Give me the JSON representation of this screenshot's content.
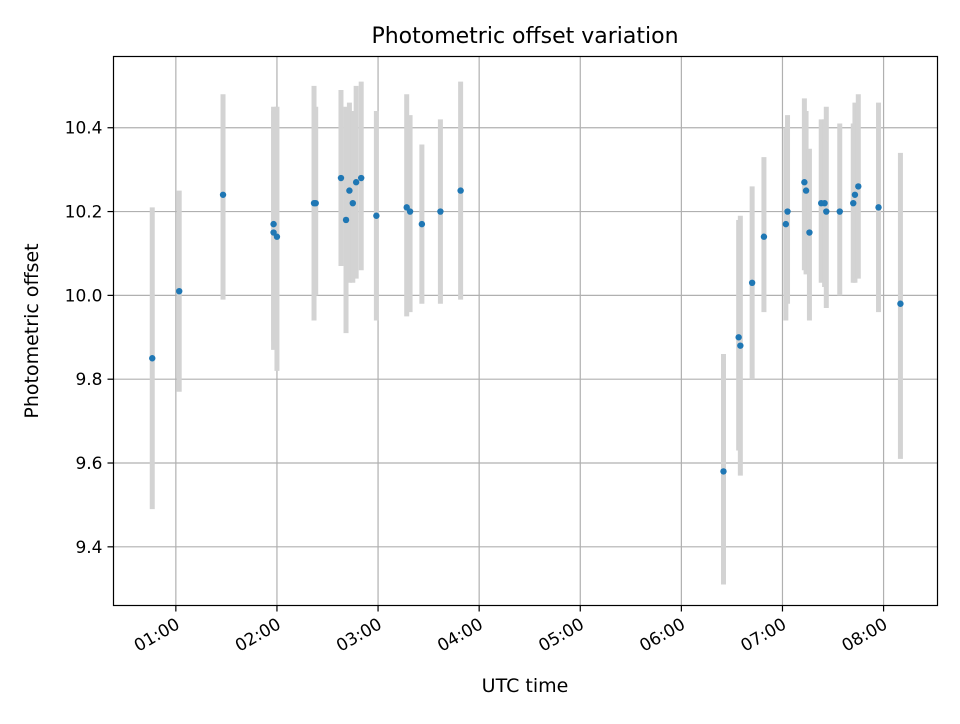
{
  "chart_data": {
    "type": "scatter",
    "title": "Photometric offset variation",
    "xlabel": "UTC time",
    "ylabel": "Photometric offset",
    "x_ticks": [
      "01:00",
      "02:00",
      "03:00",
      "04:00",
      "05:00",
      "06:00",
      "07:00",
      "08:00"
    ],
    "y_ticks": [
      "9.4",
      "9.6",
      "9.8",
      "10.0",
      "10.2",
      "10.4"
    ],
    "xlim": [
      "00:23",
      "08:32"
    ],
    "ylim": [
      9.26,
      10.57
    ],
    "grid": true,
    "point_color": "#1f77b4",
    "errorbar_color": "#d3d3d3",
    "points": [
      {
        "x": "00:46",
        "y": 9.85,
        "lo": 9.49,
        "hi": 10.21
      },
      {
        "x": "01:02",
        "y": 10.01,
        "lo": 9.77,
        "hi": 10.25
      },
      {
        "x": "01:28",
        "y": 10.24,
        "lo": 9.99,
        "hi": 10.48
      },
      {
        "x": "01:58",
        "y": 10.15,
        "lo": 9.87,
        "hi": 10.44
      },
      {
        "x": "01:58",
        "y": 10.17,
        "lo": 9.89,
        "hi": 10.45
      },
      {
        "x": "02:00",
        "y": 10.14,
        "lo": 9.82,
        "hi": 10.45
      },
      {
        "x": "02:22",
        "y": 10.22,
        "lo": 9.94,
        "hi": 10.5
      },
      {
        "x": "02:23",
        "y": 10.22,
        "lo": 10.0,
        "hi": 10.45
      },
      {
        "x": "02:38",
        "y": 10.28,
        "lo": 10.07,
        "hi": 10.49
      },
      {
        "x": "02:41",
        "y": 10.18,
        "lo": 9.91,
        "hi": 10.45
      },
      {
        "x": "02:43",
        "y": 10.25,
        "lo": 10.03,
        "hi": 10.46
      },
      {
        "x": "02:45",
        "y": 10.22,
        "lo": 10.03,
        "hi": 10.44
      },
      {
        "x": "02:47",
        "y": 10.27,
        "lo": 10.04,
        "hi": 10.5
      },
      {
        "x": "02:50",
        "y": 10.28,
        "lo": 10.06,
        "hi": 10.51
      },
      {
        "x": "02:59",
        "y": 10.19,
        "lo": 9.94,
        "hi": 10.44
      },
      {
        "x": "03:17",
        "y": 10.21,
        "lo": 9.95,
        "hi": 10.48
      },
      {
        "x": "03:19",
        "y": 10.2,
        "lo": 9.96,
        "hi": 10.43
      },
      {
        "x": "03:26",
        "y": 10.17,
        "lo": 9.98,
        "hi": 10.36
      },
      {
        "x": "03:37",
        "y": 10.2,
        "lo": 9.98,
        "hi": 10.42
      },
      {
        "x": "03:49",
        "y": 10.25,
        "lo": 9.99,
        "hi": 10.51
      },
      {
        "x": "06:25",
        "y": 9.58,
        "lo": 9.31,
        "hi": 9.86
      },
      {
        "x": "06:34",
        "y": 9.9,
        "lo": 9.63,
        "hi": 10.18
      },
      {
        "x": "06:35",
        "y": 9.88,
        "lo": 9.57,
        "hi": 10.19
      },
      {
        "x": "06:42",
        "y": 10.03,
        "lo": 9.8,
        "hi": 10.26
      },
      {
        "x": "06:49",
        "y": 10.14,
        "lo": 9.96,
        "hi": 10.33
      },
      {
        "x": "07:02",
        "y": 10.17,
        "lo": 9.94,
        "hi": 10.4
      },
      {
        "x": "07:03",
        "y": 10.2,
        "lo": 9.98,
        "hi": 10.43
      },
      {
        "x": "07:13",
        "y": 10.27,
        "lo": 10.06,
        "hi": 10.47
      },
      {
        "x": "07:14",
        "y": 10.25,
        "lo": 10.05,
        "hi": 10.44
      },
      {
        "x": "07:16",
        "y": 10.15,
        "lo": 9.94,
        "hi": 10.35
      },
      {
        "x": "07:23",
        "y": 10.22,
        "lo": 10.03,
        "hi": 10.42
      },
      {
        "x": "07:25",
        "y": 10.22,
        "lo": 10.02,
        "hi": 10.42
      },
      {
        "x": "07:26",
        "y": 10.2,
        "lo": 9.97,
        "hi": 10.45
      },
      {
        "x": "07:34",
        "y": 10.2,
        "lo": 10.0,
        "hi": 10.41
      },
      {
        "x": "07:42",
        "y": 10.22,
        "lo": 10.03,
        "hi": 10.41
      },
      {
        "x": "07:43",
        "y": 10.24,
        "lo": 10.03,
        "hi": 10.46
      },
      {
        "x": "07:45",
        "y": 10.26,
        "lo": 10.04,
        "hi": 10.48
      },
      {
        "x": "07:57",
        "y": 10.21,
        "lo": 9.96,
        "hi": 10.46
      },
      {
        "x": "08:10",
        "y": 9.98,
        "lo": 9.61,
        "hi": 10.34
      }
    ]
  }
}
